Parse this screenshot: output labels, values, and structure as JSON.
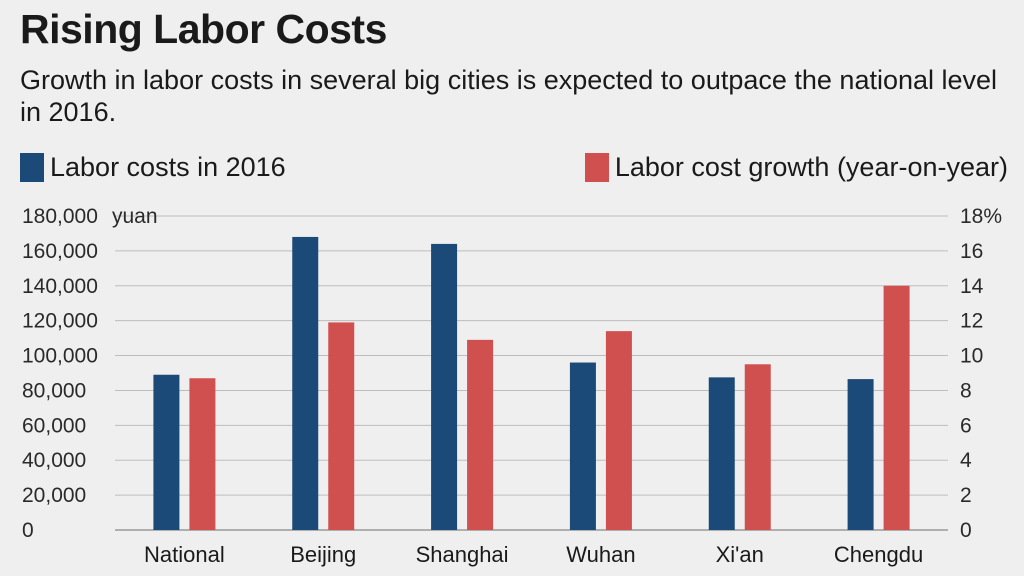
{
  "chart_data": {
    "type": "bar",
    "title": "Rising Labor Costs",
    "subtitle": "Growth in labor costs in several big cities is expected to outpace the national level in 2016.",
    "categories": [
      "National",
      "Beijing",
      "Shanghai",
      "Wuhan",
      "Xi'an",
      "Chengdu"
    ],
    "series": [
      {
        "name": "Labor costs in 2016",
        "axis": "left",
        "color": "#1c4a78",
        "values": [
          89000,
          168000,
          164000,
          96000,
          87500,
          86500
        ]
      },
      {
        "name": "Labor cost growth (year-on-year)",
        "axis": "right",
        "color": "#d05050",
        "values": [
          8.7,
          11.9,
          10.9,
          11.4,
          9.5,
          14.0
        ]
      }
    ],
    "left_axis": {
      "min": 0,
      "max": 180000,
      "step": 20000,
      "tick_labels": [
        "0",
        "20,000",
        "40,000",
        "60,000",
        "80,000",
        "100,000",
        "120,000",
        "140,000",
        "160,000",
        "180,000"
      ],
      "unit_label": "yuan"
    },
    "right_axis": {
      "min": 0,
      "max": 18,
      "step": 2,
      "tick_labels": [
        "0",
        "2",
        "4",
        "6",
        "8",
        "10",
        "12",
        "14",
        "16",
        "18%"
      ]
    },
    "grid": true,
    "legend": "top"
  }
}
